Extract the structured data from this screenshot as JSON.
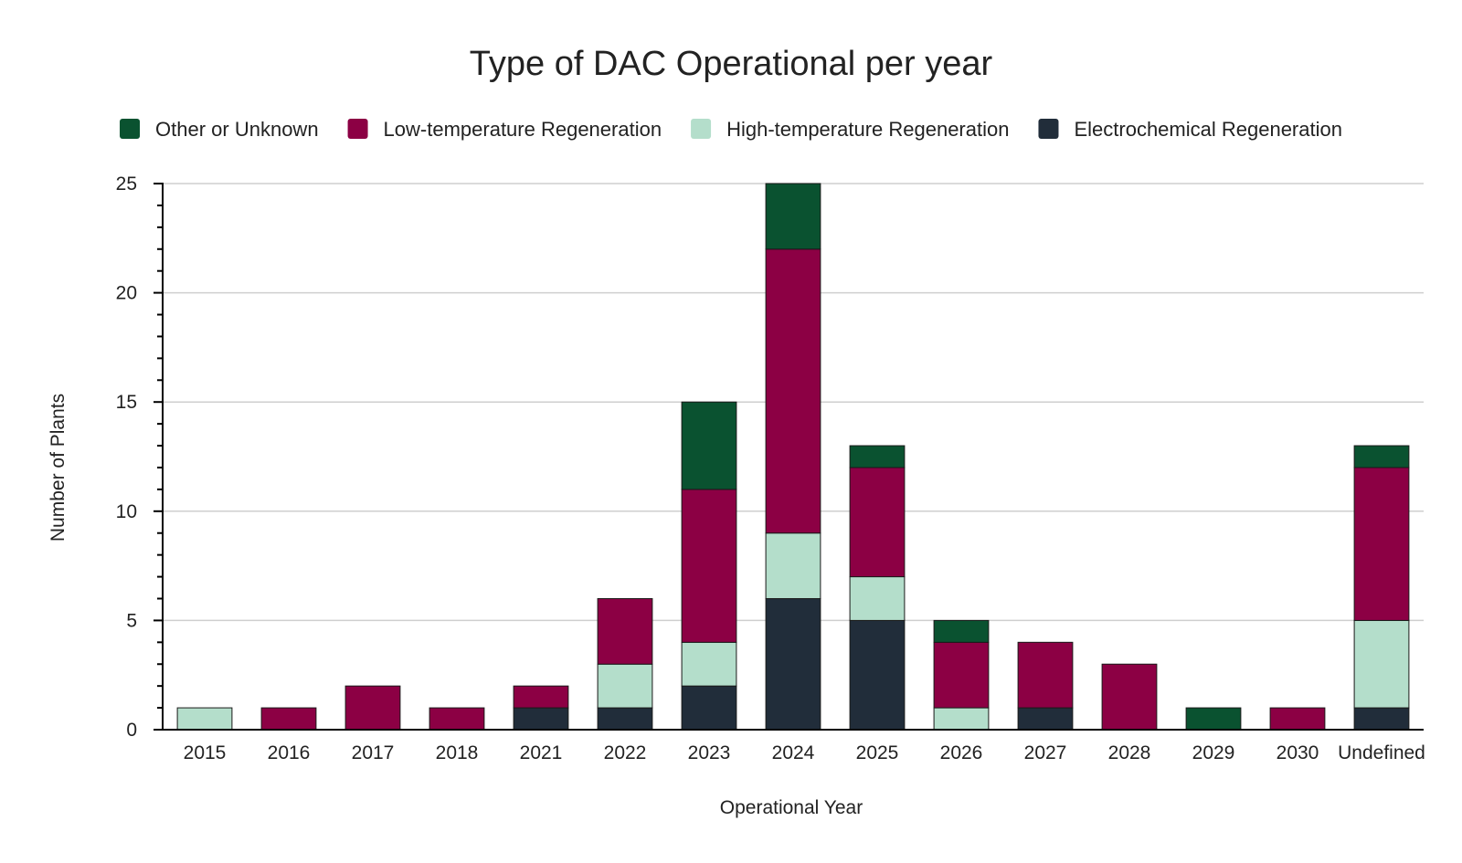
{
  "chart_data": {
    "type": "bar",
    "stacked": true,
    "title": "Type of DAC Operational per year",
    "xlabel": "Operational Year",
    "ylabel": "Number of Plants",
    "ylim": [
      0,
      25
    ],
    "yticks": [
      0,
      5,
      10,
      15,
      20,
      25
    ],
    "grid": true,
    "legend_position": "top",
    "categories": [
      "2015",
      "2016",
      "2017",
      "2018",
      "2021",
      "2022",
      "2023",
      "2024",
      "2025",
      "2026",
      "2027",
      "2028",
      "2029",
      "2030",
      "Undefined"
    ],
    "series": [
      {
        "name": "Electrochemical Regeneration",
        "color": "#212d3a",
        "values": [
          0,
          0,
          0,
          0,
          1,
          1,
          2,
          6,
          5,
          0,
          1,
          0,
          0,
          0,
          1
        ]
      },
      {
        "name": "High-temperature Regeneration",
        "color": "#b4decb",
        "values": [
          1,
          0,
          0,
          0,
          0,
          2,
          2,
          3,
          2,
          1,
          0,
          0,
          0,
          0,
          4
        ]
      },
      {
        "name": "Low-temperature Regeneration",
        "color": "#8c0044",
        "values": [
          0,
          1,
          2,
          1,
          1,
          3,
          7,
          13,
          5,
          3,
          3,
          3,
          0,
          1,
          7
        ]
      },
      {
        "name": "Other or Unknown",
        "color": "#0a5230",
        "values": [
          0,
          0,
          0,
          0,
          0,
          0,
          4,
          3,
          1,
          1,
          0,
          0,
          1,
          0,
          1
        ]
      }
    ],
    "legend_order": [
      "Other or Unknown",
      "Low-temperature Regeneration",
      "High-temperature Regeneration",
      "Electrochemical Regeneration"
    ]
  }
}
